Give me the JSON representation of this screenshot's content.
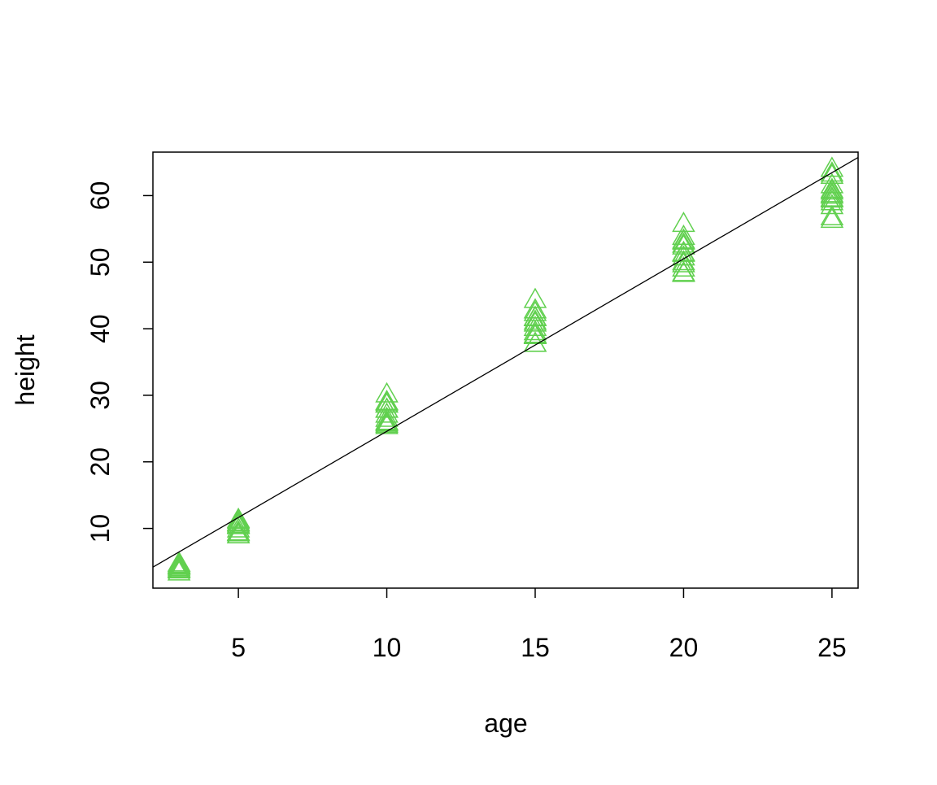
{
  "chart_data": {
    "type": "scatter",
    "x_label": "age",
    "y_label": "height",
    "xlim": [
      2.12,
      25.88
    ],
    "ylim": [
      1.03,
      66.53
    ],
    "xticks": [
      5,
      10,
      15,
      20,
      25
    ],
    "yticks": [
      10,
      20,
      30,
      40,
      50,
      60
    ],
    "marker": "triangle-open",
    "color": "#61d04f",
    "x": [
      3,
      3,
      3,
      3,
      3,
      3,
      3,
      3,
      3,
      3,
      3,
      3,
      3,
      3,
      5,
      5,
      5,
      5,
      5,
      5,
      5,
      5,
      5,
      5,
      5,
      5,
      5,
      5,
      10,
      10,
      10,
      10,
      10,
      10,
      10,
      10,
      10,
      10,
      10,
      10,
      10,
      10,
      15,
      15,
      15,
      15,
      15,
      15,
      15,
      15,
      15,
      15,
      15,
      15,
      15,
      15,
      20,
      20,
      20,
      20,
      20,
      20,
      20,
      20,
      20,
      20,
      20,
      20,
      20,
      20,
      25,
      25,
      25,
      25,
      25,
      25,
      25,
      25,
      25,
      25,
      25,
      25,
      25,
      25
    ],
    "values": [
      4.51,
      4.55,
      4.79,
      3.91,
      4.81,
      3.88,
      4.32,
      4.57,
      3.77,
      4.33,
      4.38,
      4.12,
      3.93,
      3.46,
      10.89,
      10.92,
      11.37,
      9.48,
      11.2,
      9.4,
      10.43,
      10.57,
      9.03,
      10.79,
      10.48,
      9.92,
      9.34,
      9.05,
      28.72,
      29.07,
      30.21,
      25.66,
      28.66,
      25.99,
      27.16,
      27.9,
      25.45,
      28.97,
      27.93,
      26.54,
      26.08,
      25.85,
      41.74,
      42.83,
      44.4,
      39.07,
      41.66,
      39.55,
      40.85,
      41.13,
      38.98,
      42.44,
      40.2,
      37.82,
      37.79,
      39.15,
      52.7,
      53.88,
      55.82,
      50.78,
      53.31,
      51.46,
      51.33,
      52.43,
      49.76,
      53.17,
      50.06,
      48.43,
      48.31,
      49.12,
      60.92,
      63.39,
      64.1,
      59.07,
      63.05,
      59.64,
      60.07,
      60.69,
      60.28,
      61.62,
      58.49,
      56.81,
      56.43,
      59.49
    ],
    "fit_line": {
      "intercept": -1.3124,
      "slope": 2.5905,
      "color": "#000000"
    }
  }
}
